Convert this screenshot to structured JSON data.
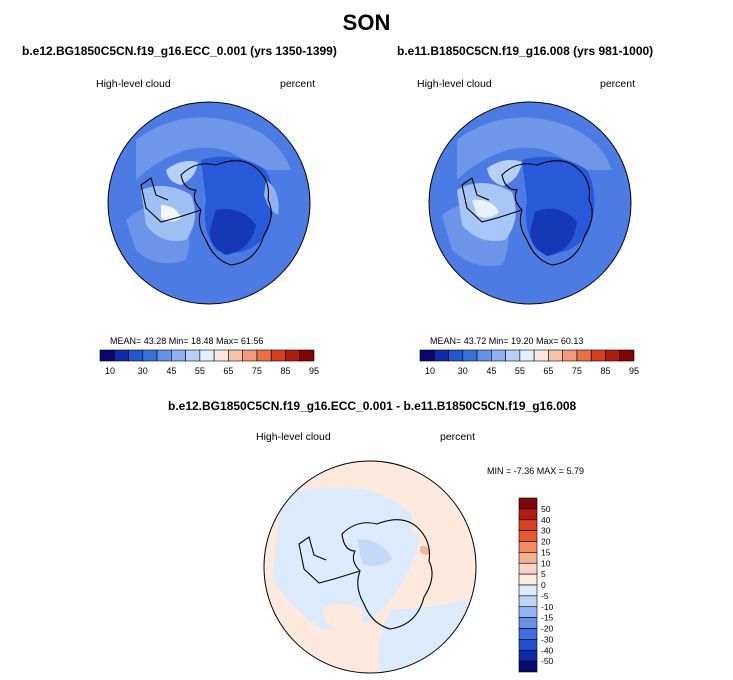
{
  "season": "SON",
  "panels": [
    {
      "title": "b.e12.BG1850C5CN.f19_g16.ECC_0.001 (yrs 1350-1399)",
      "left_label": "High-level cloud",
      "right_label": "percent",
      "stats": {
        "mean": "43.28",
        "min": "18.48",
        "max": "61.56"
      },
      "stats_text": "MEAN=  43.28  Min=  18.48  Max=  61.56"
    },
    {
      "title": "b.e11.B1850C5CN.f19_g16.008 (yrs 981-1000)",
      "left_label": "High-level cloud",
      "right_label": "percent",
      "stats": {
        "mean": "43.72",
        "min": "19.20",
        "max": "60.13"
      },
      "stats_text": "MEAN=  43.72  Min=  19.20  Max=  60.13"
    }
  ],
  "difference_panel": {
    "title": "b.e12.BG1850C5CN.f19_g16.ECC_0.001 - b.e11.B1850C5CN.f19_g16.008",
    "left_label": "High-level cloud",
    "right_label": "percent",
    "minmax_text": "MIN =  -7.36 MAX =   5.79"
  },
  "field_colorbar": {
    "colors": [
      "#08076e",
      "#0c2bb0",
      "#2255d6",
      "#3a6fe0",
      "#6491ea",
      "#8eb2f0",
      "#b8d0f6",
      "#e3eefc",
      "#fde6dc",
      "#f8c2ab",
      "#f39a78",
      "#ec6f48",
      "#d8401f",
      "#b31a10",
      "#7e0607"
    ],
    "tick_labels": [
      "10",
      "30",
      "45",
      "55",
      "65",
      "75",
      "85",
      "95"
    ]
  },
  "diff_colorbar": {
    "colors": [
      "#7e0607",
      "#b31a10",
      "#d8401f",
      "#ec5b30",
      "#f38a62",
      "#f8b196",
      "#fbd6c6",
      "#fdece2",
      "#deebfc",
      "#bcd4f6",
      "#92b4f0",
      "#6990e8",
      "#3f6ee0",
      "#2450cf",
      "#0d2aa8",
      "#070a6e"
    ],
    "tick_labels": [
      "50",
      "40",
      "30",
      "20",
      "15",
      "10",
      "5",
      "0",
      "-5",
      "-10",
      "-15",
      "-20",
      "-30",
      "-40",
      "-50"
    ]
  },
  "colors": {
    "ocean_high": "#4f7ee2",
    "land_outline": "#000000"
  }
}
